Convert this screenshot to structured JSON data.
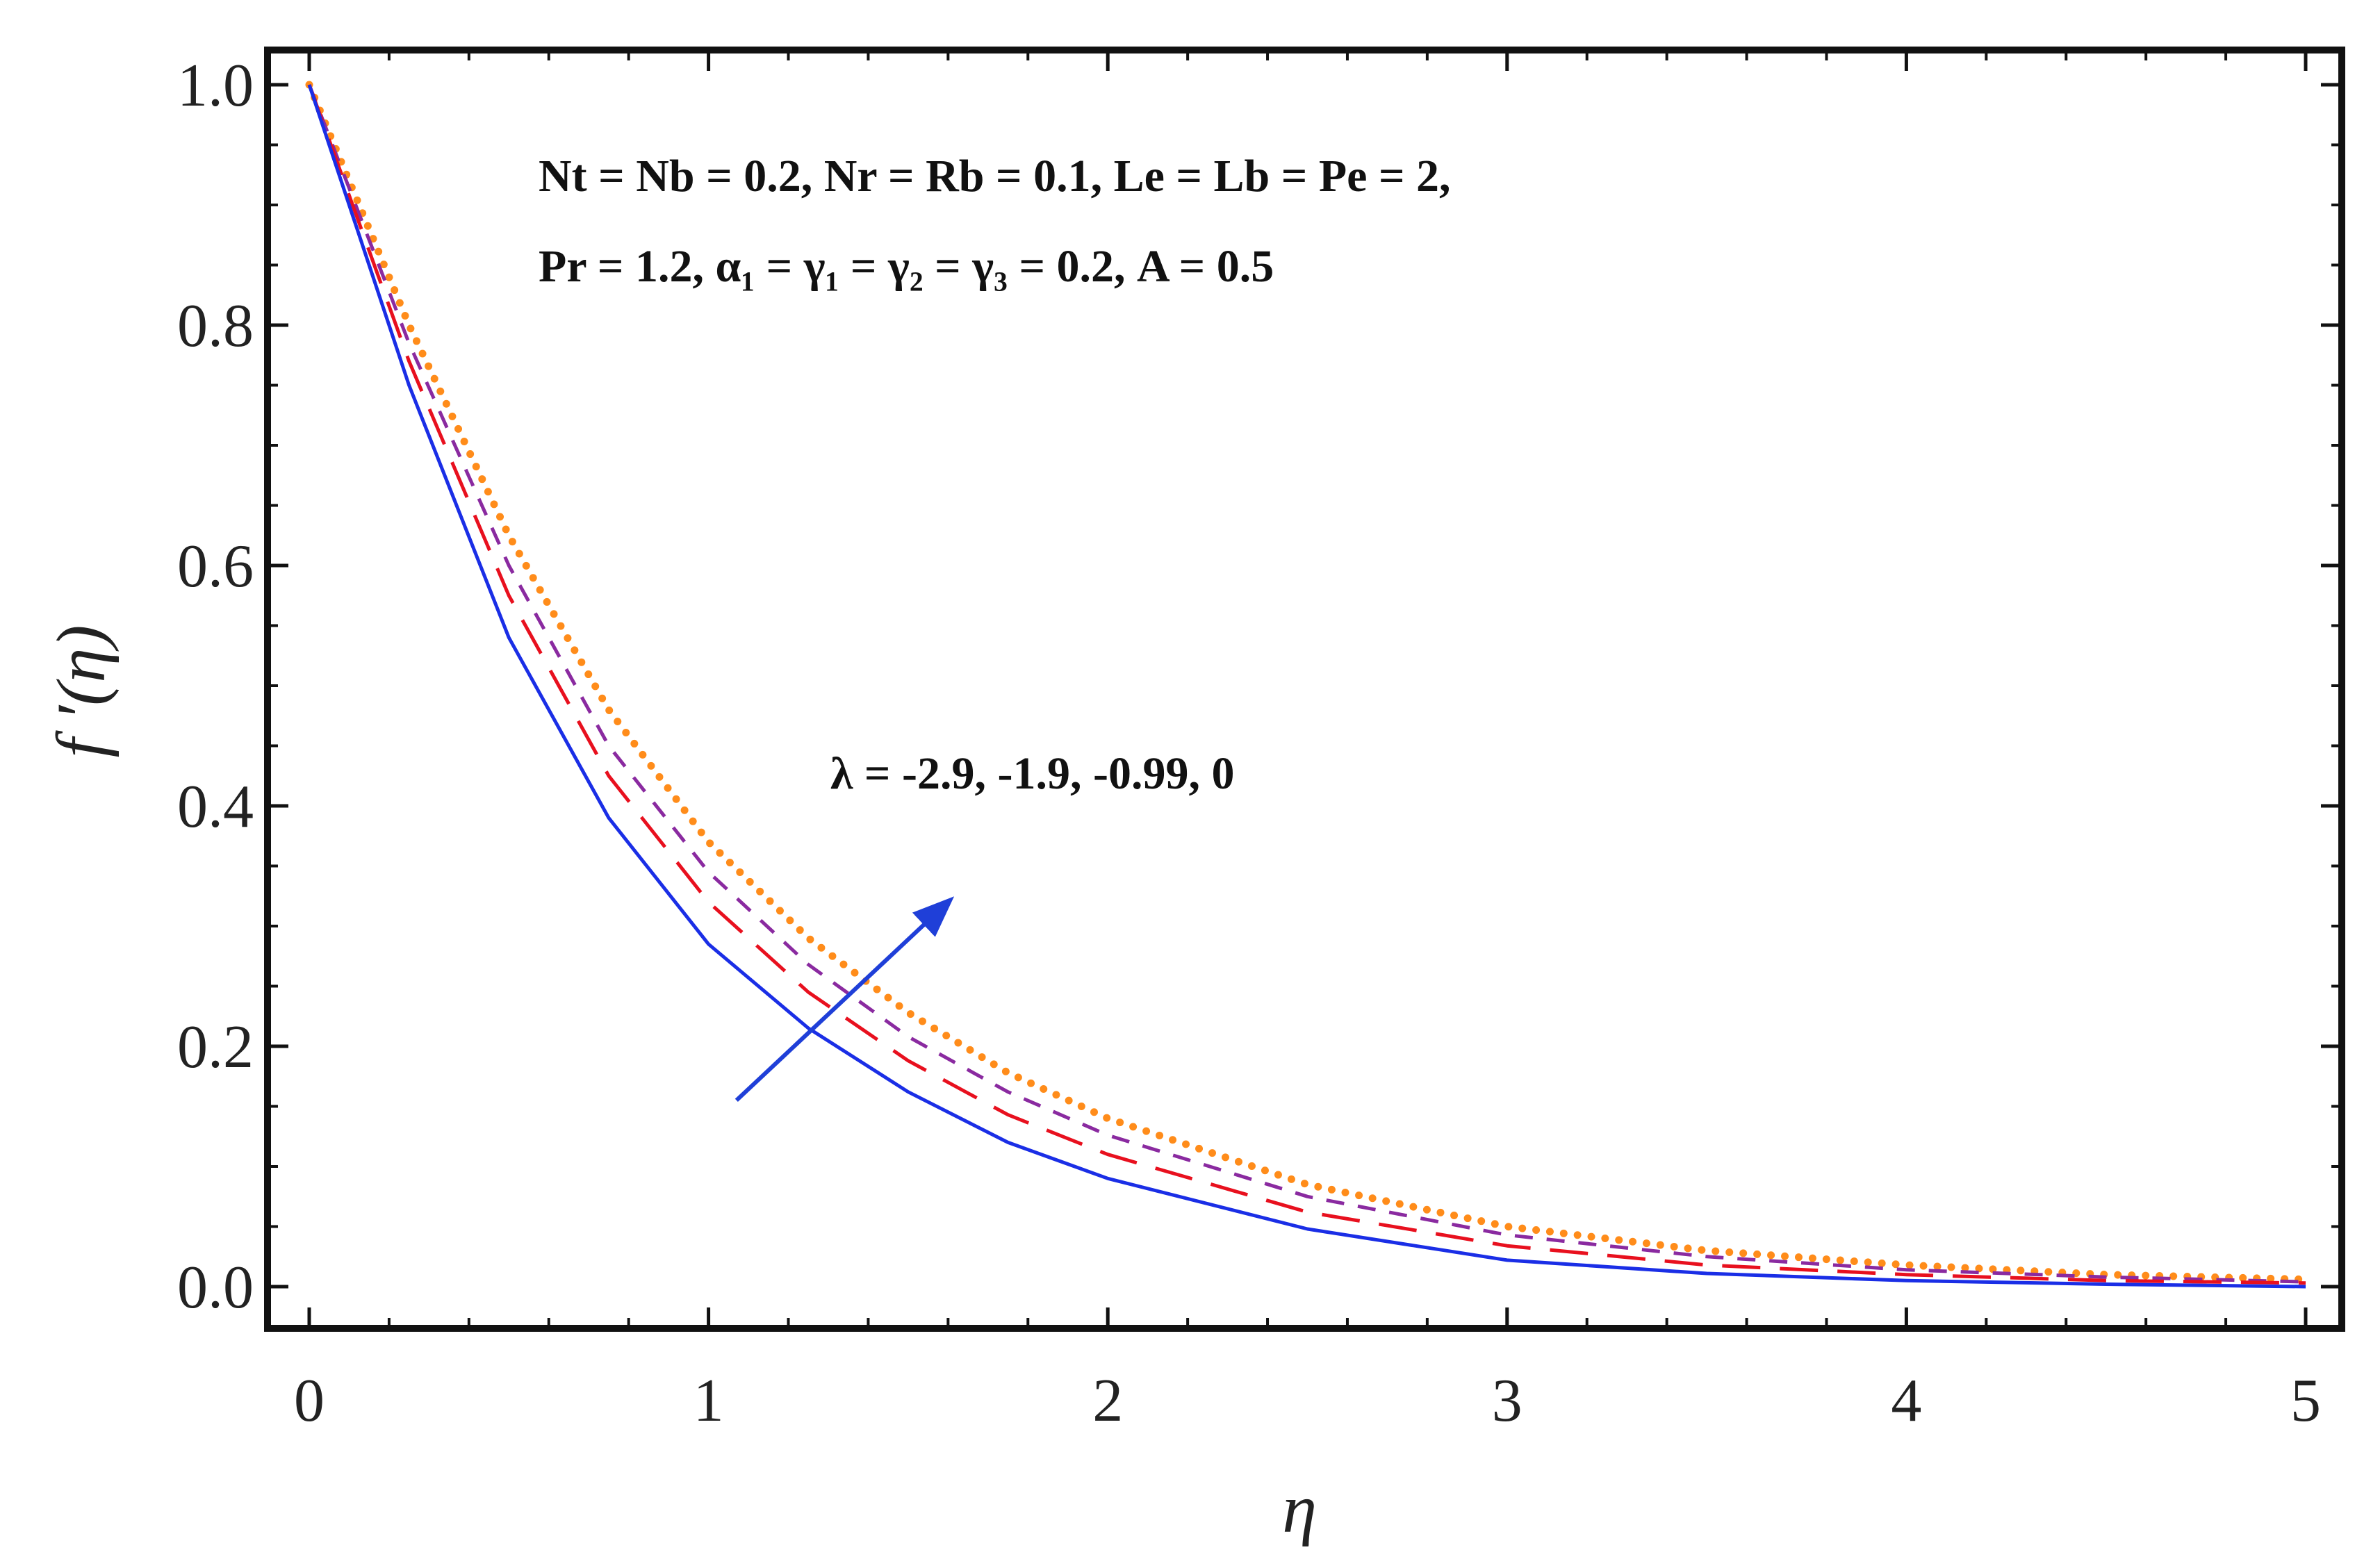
{
  "chart_data": {
    "type": "line",
    "xlabel": "η",
    "ylabel": "f ′(η)",
    "xlim": [
      0,
      5
    ],
    "ylim": [
      0,
      1
    ],
    "x_ticks": [
      "0",
      "1",
      "2",
      "3",
      "4",
      "5"
    ],
    "y_ticks": [
      "0.0",
      "0.2",
      "0.4",
      "0.6",
      "0.8",
      "1.0"
    ],
    "grid": false,
    "annotations": {
      "params_line1": "Nt = Nb = 0.2, Nr =  Rb = 0.1, Le = Lb = Pe = 2,",
      "params_line2": "Pr = 1.2, α₁ = γ₁ = γ₂ = γ₃ = 0.2, A = 0.5",
      "lambda_label": "λ = -2.9, -1.9, -0.99, 0"
    },
    "arrow": {
      "from": [
        1.07,
        0.155
      ],
      "to": [
        1.6,
        0.32
      ],
      "color": "#1f3fd8"
    },
    "x": [
      0,
      0.25,
      0.5,
      0.75,
      1.0,
      1.25,
      1.5,
      1.75,
      2.0,
      2.5,
      3.0,
      3.5,
      4.0,
      4.5,
      5.0
    ],
    "series": [
      {
        "color": "#1a2ee6",
        "style": "solid",
        "values": [
          1.0,
          0.75,
          0.54,
          0.39,
          0.285,
          0.215,
          0.162,
          0.12,
          0.09,
          0.048,
          0.022,
          0.011,
          0.005,
          0.002,
          0.0
        ]
      },
      {
        "color": "#e8101e",
        "style": "long-dash",
        "values": [
          1.0,
          0.77,
          0.575,
          0.425,
          0.32,
          0.245,
          0.188,
          0.143,
          0.11,
          0.062,
          0.034,
          0.018,
          0.01,
          0.005,
          0.003
        ]
      },
      {
        "color": "#8a2aa0",
        "style": "short-dash",
        "values": [
          1.0,
          0.785,
          0.6,
          0.45,
          0.345,
          0.268,
          0.208,
          0.162,
          0.126,
          0.075,
          0.043,
          0.025,
          0.014,
          0.008,
          0.004
        ]
      },
      {
        "color": "#ff8c1a",
        "style": "dotted",
        "values": [
          1.0,
          0.8,
          0.625,
          0.48,
          0.37,
          0.29,
          0.228,
          0.178,
          0.14,
          0.085,
          0.05,
          0.03,
          0.018,
          0.01,
          0.006
        ]
      }
    ]
  }
}
